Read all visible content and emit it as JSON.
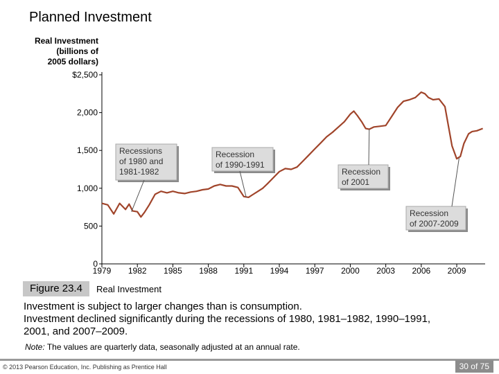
{
  "slide": {
    "title": "Planned Investment",
    "figure_label": "Figure 23.4",
    "figure_caption": "Real Investment",
    "description_lines": [
      "Investment is subject to larger changes than is consumption.",
      "Investment declined significantly during the recessions of 1980, 1981–1982, 1990–1991,",
      "2001, and 2007–2009."
    ],
    "note_label": "Note:",
    "note_text": "The values are quarterly data, seasonally adjusted at an annual rate.",
    "copyright": "© 2013 Pearson Education, Inc. Publishing as Prentice Hall",
    "page": "30 of 75"
  },
  "chart_data": {
    "type": "line",
    "title": "",
    "xlabel": "",
    "ylabel_lines": [
      "Real Investment",
      "(billions of",
      "2005 dollars)"
    ],
    "xlim": [
      1979,
      2011.4
    ],
    "ylim": [
      0,
      2500
    ],
    "x_ticks": [
      "1979",
      "1982",
      "1985",
      "1988",
      "1991",
      "1994",
      "1997",
      "2000",
      "2003",
      "2006",
      "2009"
    ],
    "y_ticks": [
      {
        "value": 2500,
        "label": "$2,500"
      },
      {
        "value": 2000,
        "label": "2,000"
      },
      {
        "value": 1500,
        "label": "1,500"
      },
      {
        "value": 1000,
        "label": "1,000"
      },
      {
        "value": 500,
        "label": "500"
      },
      {
        "value": 0,
        "label": "0"
      }
    ],
    "series": [
      {
        "name": "Real Investment",
        "color": "#a0442a",
        "x": [
          1979.0,
          1979.5,
          1980.0,
          1980.5,
          1981.0,
          1981.3,
          1981.6,
          1982.0,
          1982.3,
          1982.6,
          1983.0,
          1983.5,
          1984.0,
          1984.5,
          1985.0,
          1985.5,
          1986.0,
          1986.5,
          1987.0,
          1987.5,
          1988.0,
          1988.5,
          1989.0,
          1989.5,
          1990.0,
          1990.5,
          1991.0,
          1991.4,
          1991.8,
          1992.2,
          1992.6,
          1993.0,
          1993.5,
          1994.0,
          1994.5,
          1995.0,
          1995.5,
          1996.0,
          1996.5,
          1997.0,
          1997.5,
          1998.0,
          1998.5,
          1999.0,
          1999.5,
          2000.0,
          2000.3,
          2000.6,
          2001.0,
          2001.3,
          2001.6,
          2002.0,
          2002.5,
          2003.0,
          2003.5,
          2004.0,
          2004.5,
          2005.0,
          2005.5,
          2006.0,
          2006.3,
          2006.6,
          2007.0,
          2007.5,
          2008.0,
          2008.3,
          2008.6,
          2009.0,
          2009.3,
          2009.6,
          2010.0,
          2010.3,
          2010.7,
          2011.2
        ],
        "values": [
          800,
          780,
          660,
          800,
          720,
          790,
          700,
          690,
          620,
          680,
          780,
          920,
          960,
          940,
          960,
          940,
          930,
          950,
          960,
          980,
          990,
          1030,
          1050,
          1030,
          1030,
          1010,
          890,
          880,
          920,
          960,
          1000,
          1060,
          1140,
          1220,
          1260,
          1250,
          1280,
          1360,
          1440,
          1520,
          1600,
          1680,
          1740,
          1810,
          1880,
          1980,
          2020,
          1960,
          1870,
          1790,
          1780,
          1810,
          1820,
          1830,
          1950,
          2070,
          2150,
          2170,
          2200,
          2270,
          2250,
          2200,
          2170,
          2180,
          2080,
          1820,
          1560,
          1390,
          1420,
          1590,
          1720,
          1750,
          1760,
          1790
        ]
      }
    ],
    "annotations": [
      {
        "text": [
          "Recessions",
          "of 1980 and",
          "1981-1982"
        ],
        "target_x": 1981.5,
        "target_y": 690
      },
      {
        "text": [
          "Recession",
          "of 1990-1991"
        ],
        "target_x": 1991.2,
        "target_y": 880
      },
      {
        "text": [
          "Recession",
          "of 2001"
        ],
        "target_x": 2001.6,
        "target_y": 1780
      },
      {
        "text": [
          "Recession",
          "of 2007-2009"
        ],
        "target_x": 2009.2,
        "target_y": 1400
      }
    ]
  }
}
